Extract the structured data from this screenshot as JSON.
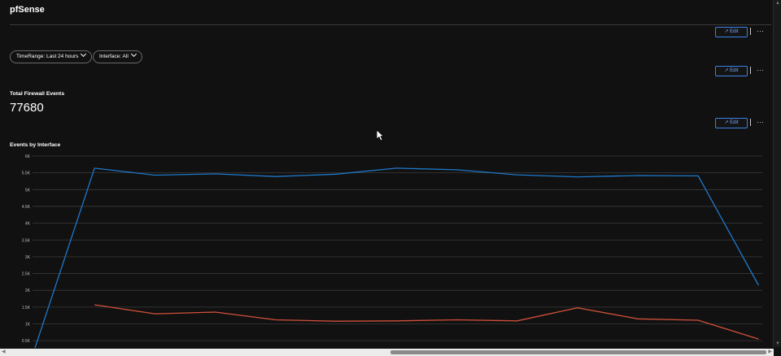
{
  "page": {
    "title": "pfSense"
  },
  "toolbar": {
    "edit_label": "↗ Edit",
    "more_label": "···"
  },
  "filters": [
    {
      "label": "TimeRange: Last 24 hours"
    },
    {
      "label": "Interface: All"
    }
  ],
  "tiles": {
    "total": {
      "title": "Total Firewall Events",
      "value": "77680"
    },
    "by_interface": {
      "title": "Events by Interface"
    }
  },
  "colors": {
    "series_blue": "#1e78c8",
    "series_red": "#d1503a",
    "accent": "#3b82e6"
  },
  "chart_data": {
    "type": "line",
    "title": "Events by Interface",
    "y_ticks": [
      "6K",
      "5.5K",
      "5K",
      "4.5K",
      "4K",
      "3.5K",
      "3K",
      "2.5K",
      "2K",
      "1.5K",
      "1K",
      "0.5K"
    ],
    "ylim": [
      0,
      6000
    ],
    "grid": true,
    "x": [
      0,
      1,
      2,
      3,
      4,
      5,
      6,
      7,
      8,
      9,
      10,
      11,
      12
    ],
    "series": [
      {
        "values": [
          200,
          5640,
          5430,
          5470,
          5390,
          5460,
          5640,
          5590,
          5440,
          5380,
          5420,
          5410,
          2150
        ]
      },
      {
        "values": [
          null,
          1570,
          1300,
          1350,
          1120,
          1080,
          1090,
          1120,
          1090,
          1480,
          1150,
          1110,
          550
        ]
      }
    ]
  }
}
